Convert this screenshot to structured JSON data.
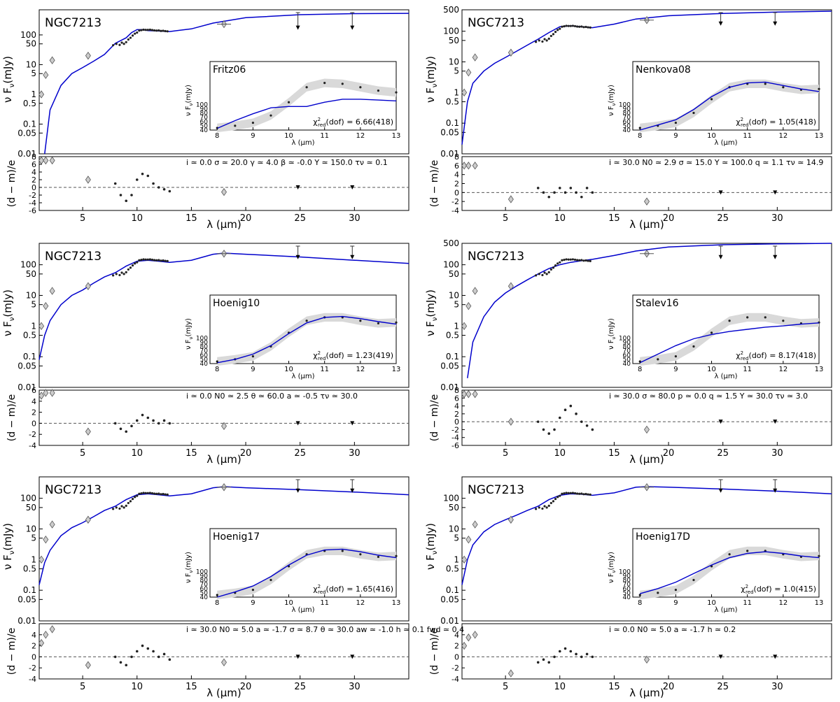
{
  "figure": {
    "object_name": "NGC7213",
    "y_label": "ν F",
    "y_label_sub": "ν",
    "y_label_unit": "(mJy)",
    "inset_y_label": "ν F",
    "inset_y_label_sub": "ν",
    "inset_y_label_unit": "(mJy)",
    "inset_x_label": "λ (μm)",
    "residual_label": "(d − m)/e",
    "x_label": "λ (μm)",
    "chi_prefix": "χ",
    "chi_sup": "2",
    "chi_sub": "red",
    "chi_dof": "(dof) = "
  },
  "chart_data": [
    {
      "type": "line",
      "panel": "top-left",
      "model": "Fritz06",
      "chi2_text": "6.66(418)",
      "params_text": "i ≃ 0.0      σ ≃ 20.0   γ ≃ 4.0     β ≃ -0.0   Y ≃ 150.0 τν ≃ 0.1",
      "xlim": [
        1,
        35
      ],
      "xticks": [
        5,
        10,
        15,
        20,
        25,
        30
      ],
      "ylim_log": [
        0.01,
        700
      ],
      "yticks": [
        "0.01",
        "0.05",
        "0.1",
        "0.5",
        "1",
        "5",
        "10",
        "50",
        "100"
      ],
      "ytick_values": [
        0.01,
        0.05,
        0.1,
        0.5,
        1,
        5,
        10,
        50,
        100
      ],
      "rylim": [
        -6,
        8
      ],
      "rticks": [
        -6,
        -4,
        -2,
        0,
        2,
        4,
        6,
        8
      ],
      "model_curve": {
        "x": [
          1.5,
          2,
          3,
          4,
          5,
          6,
          7,
          8,
          9,
          9.5,
          10,
          10.5,
          11,
          12,
          13,
          15,
          17,
          20,
          25,
          30,
          35
        ],
        "y": [
          0.01,
          0.3,
          2,
          5,
          8,
          13,
          22,
          52,
          80,
          120,
          150,
          150,
          140,
          135,
          130,
          160,
          250,
          380,
          480,
          520,
          530
        ]
      },
      "inset": {
        "xlim": [
          7.8,
          13
        ],
        "ylim": [
          40,
          200
        ],
        "curve_x": [
          8,
          8.5,
          9,
          9.5,
          10,
          10.5,
          11,
          11.5,
          12,
          12.5,
          13
        ],
        "curve_y": [
          44,
          62,
          78,
          92,
          95,
          95,
          105,
          112,
          112,
          110,
          108
        ],
        "data_y": [
          45,
          50,
          57,
          74,
          105,
          140,
          150,
          148,
          140,
          132,
          128
        ]
      },
      "residuals": {
        "x": [
          8,
          8.5,
          9,
          9.5,
          10,
          10.5,
          11,
          11.5,
          12,
          12.5,
          13
        ],
        "y": [
          1,
          -2,
          -3.5,
          -2,
          2,
          3.5,
          3,
          1,
          0,
          -0.5,
          -1
        ]
      }
    },
    {
      "type": "line",
      "panel": "top-right",
      "model": "Nenkova08",
      "chi2_text": "1.05(418)",
      "params_text": "i ≃ 30.0    N0 ≃ 2.9   σ ≃ 15.0   Y ≃ 100.0 q ≃ 1.1      τν ≃ 14.9",
      "xlim": [
        1,
        35
      ],
      "xticks": [
        5,
        10,
        15,
        20,
        25,
        30
      ],
      "ylim_log": [
        0.01,
        500
      ],
      "yticks": [
        "0.01",
        "0.05",
        "0.1",
        "0.5",
        "1",
        "5",
        "10",
        "50",
        "100",
        "500"
      ],
      "ytick_values": [
        0.01,
        0.05,
        0.1,
        0.5,
        1,
        5,
        10,
        50,
        100,
        500
      ],
      "rylim": [
        -4,
        8
      ],
      "rticks": [
        -4,
        -2,
        0,
        2,
        4,
        6,
        8
      ],
      "model_curve": {
        "x": [
          1,
          1.5,
          2,
          3,
          4,
          5,
          6,
          7,
          8,
          9,
          10,
          11,
          12,
          13,
          15,
          17,
          20,
          25,
          30,
          35
        ],
        "y": [
          0.02,
          0.5,
          2,
          5,
          9,
          14,
          22,
          35,
          55,
          90,
          140,
          150,
          140,
          130,
          170,
          250,
          320,
          380,
          420,
          450
        ]
      },
      "inset": {
        "xlim": [
          7.8,
          13
        ],
        "ylim": [
          40,
          200
        ],
        "curve_x": [
          8,
          8.5,
          9,
          9.5,
          10,
          10.5,
          11,
          11.5,
          12,
          12.5,
          13
        ],
        "curve_y": [
          40,
          52,
          64,
          88,
          118,
          140,
          150,
          152,
          144,
          136,
          130
        ],
        "data_y": [
          45,
          50,
          57,
          80,
          112,
          140,
          148,
          148,
          140,
          134,
          136
        ]
      },
      "residuals": {
        "x": [
          8,
          8.5,
          9,
          9.5,
          10,
          10.5,
          11,
          11.5,
          12,
          12.5,
          13
        ],
        "y": [
          1,
          0,
          -1,
          0,
          1,
          0,
          1,
          0,
          -1,
          1,
          0
        ]
      }
    },
    {
      "type": "line",
      "panel": "middle-left",
      "model": "Hoenig10",
      "chi2_text": "1.23(419)",
      "params_text": "i ≃ 0.0      N0 ≃ 2.5   θ ≃ 60.0   a ≃ -0.5    τν ≃ 30.0",
      "xlim": [
        1,
        35
      ],
      "xticks": [
        5,
        10,
        15,
        20,
        25,
        30
      ],
      "ylim_log": [
        0.01,
        500
      ],
      "yticks": [
        "0.01",
        "0.05",
        "0.1",
        "0.5",
        "1",
        "5",
        "10",
        "50",
        "100"
      ],
      "ytick_values": [
        0.01,
        0.05,
        0.1,
        0.5,
        1,
        5,
        10,
        50,
        100
      ],
      "rylim": [
        -4,
        6
      ],
      "rticks": [
        -4,
        -2,
        0,
        2,
        4,
        6
      ],
      "model_curve": {
        "x": [
          1,
          1.5,
          2,
          3,
          4,
          5,
          6,
          7,
          8,
          9,
          10,
          11,
          12,
          13,
          15,
          17,
          18,
          20,
          25,
          30,
          35
        ],
        "y": [
          0.08,
          0.5,
          1.5,
          5,
          10,
          15,
          25,
          40,
          55,
          90,
          130,
          140,
          130,
          120,
          140,
          220,
          240,
          220,
          180,
          140,
          110
        ]
      },
      "inset": {
        "xlim": [
          7.8,
          13
        ],
        "ylim": [
          40,
          200
        ],
        "curve_x": [
          8,
          8.5,
          9,
          9.5,
          10,
          10.5,
          11,
          11.5,
          12,
          12.5,
          13
        ],
        "curve_y": [
          42,
          50,
          62,
          82,
          110,
          135,
          148,
          150,
          145,
          138,
          132
        ],
        "data_y": [
          45,
          50,
          57,
          80,
          112,
          140,
          148,
          148,
          140,
          134,
          136
        ]
      },
      "residuals": {
        "x": [
          8,
          8.5,
          9,
          9.5,
          10,
          10.5,
          11,
          11.5,
          12,
          12.5,
          13
        ],
        "y": [
          0,
          -1,
          -1.5,
          -0.5,
          0.5,
          1.5,
          1,
          0.5,
          0,
          0.5,
          0
        ]
      }
    },
    {
      "type": "line",
      "panel": "middle-right",
      "model": "Stalev16",
      "chi2_text": "8.17(418)",
      "params_text": "i ≃ 30.0    σ ≃ 80.0   p ≃ 0.0      q ≃ 1.5      Y ≃ 30.0   τν ≃ 3.0",
      "xlim": [
        1,
        35
      ],
      "xticks": [
        5,
        10,
        15,
        20,
        25,
        30
      ],
      "ylim_log": [
        0.01,
        500
      ],
      "yticks": [
        "0.01",
        "0.05",
        "0.1",
        "0.5",
        "1",
        "5",
        "10",
        "50",
        "100",
        "500"
      ],
      "ytick_values": [
        0.01,
        0.05,
        0.1,
        0.5,
        1,
        5,
        10,
        50,
        100,
        500
      ],
      "rylim": [
        -6,
        8
      ],
      "rticks": [
        -6,
        -4,
        -2,
        0,
        2,
        4,
        6,
        8
      ],
      "model_curve": {
        "x": [
          1.5,
          2,
          3,
          4,
          5,
          6,
          7,
          8,
          9,
          10,
          11,
          12,
          13,
          15,
          17,
          20,
          25,
          30,
          35
        ],
        "y": [
          0.02,
          0.3,
          2,
          6,
          12,
          20,
          32,
          50,
          75,
          100,
          120,
          135,
          150,
          200,
          280,
          380,
          450,
          480,
          500
        ]
      },
      "inset": {
        "xlim": [
          7.8,
          13
        ],
        "ylim": [
          40,
          200
        ],
        "curve_x": [
          8,
          8.5,
          9,
          9.5,
          10,
          10.5,
          11,
          11.5,
          12,
          12.5,
          13
        ],
        "curve_y": [
          42,
          62,
          82,
          98,
          108,
          115,
          120,
          125,
          128,
          132,
          135
        ],
        "data_y": [
          45,
          50,
          57,
          80,
          112,
          140,
          148,
          148,
          140,
          134,
          136
        ]
      },
      "residuals": {
        "x": [
          8,
          8.5,
          9,
          9.5,
          10,
          10.5,
          11,
          11.5,
          12,
          12.5,
          13
        ],
        "y": [
          0,
          -2,
          -3,
          -2,
          1,
          3,
          4,
          2,
          0,
          -1,
          -2
        ]
      }
    },
    {
      "type": "line",
      "panel": "bottom-left",
      "model": "Hoenig17",
      "chi2_text": "1.65(416)",
      "params_text": "i ≃ 30.0    N0 ≃ 5.0   a ≃ -1.7    σ ≃ 8.7     θ ≃ 30.0   aw ≃ -1.0 h ≃ 0.1      fwd ≃ 0.4",
      "xlim": [
        1,
        35
      ],
      "xticks": [
        5,
        10,
        15,
        20,
        25,
        30
      ],
      "ylim_log": [
        0.01,
        500
      ],
      "yticks": [
        "0.01",
        "0.05",
        "0.1",
        "0.5",
        "1",
        "5",
        "10",
        "50",
        "100"
      ],
      "ytick_values": [
        0.01,
        0.05,
        0.1,
        0.5,
        1,
        5,
        10,
        50,
        100
      ],
      "rylim": [
        -4,
        6
      ],
      "rticks": [
        -4,
        -2,
        0,
        2,
        4
      ],
      "model_curve": {
        "x": [
          1,
          1.5,
          2,
          3,
          4,
          5,
          6,
          7,
          8,
          9,
          10,
          11,
          12,
          13,
          15,
          17,
          18,
          20,
          25,
          30,
          35
        ],
        "y": [
          0.15,
          0.8,
          2,
          6,
          11,
          16,
          25,
          40,
          55,
          90,
          130,
          140,
          130,
          120,
          140,
          220,
          240,
          220,
          190,
          160,
          130
        ]
      },
      "inset": {
        "xlim": [
          7.8,
          13
        ],
        "ylim": [
          40,
          200
        ],
        "curve_x": [
          8,
          8.5,
          9,
          9.5,
          10,
          10.5,
          11,
          11.5,
          12,
          12.5,
          13
        ],
        "curve_y": [
          40,
          52,
          66,
          88,
          115,
          138,
          150,
          152,
          146,
          138,
          132
        ],
        "data_y": [
          45,
          50,
          57,
          80,
          112,
          140,
          148,
          148,
          140,
          134,
          136
        ]
      },
      "residuals": {
        "x": [
          8,
          8.5,
          9,
          9.5,
          10,
          10.5,
          11,
          11.5,
          12,
          12.5,
          13
        ],
        "y": [
          0,
          -1,
          -1.5,
          0,
          1,
          2,
          1.5,
          1,
          0,
          0.5,
          -0.5
        ]
      }
    },
    {
      "type": "line",
      "panel": "bottom-right",
      "model": "Hoenig17D",
      "chi2_text": "1.0(415)",
      "params_text": "i ≃ 0.0      N0 ≃ 5.0   a ≃ -1.7    h ≃ 0.2",
      "xlim": [
        1,
        35
      ],
      "xticks": [
        5,
        10,
        15,
        20,
        25,
        30
      ],
      "ylim_log": [
        0.01,
        500
      ],
      "yticks": [
        "0.01",
        "0.05",
        "0.1",
        "0.5",
        "1",
        "5",
        "10",
        "50",
        "100"
      ],
      "ytick_values": [
        0.01,
        0.05,
        0.1,
        0.5,
        1,
        5,
        10,
        50,
        100
      ],
      "rylim": [
        -4,
        6
      ],
      "rticks": [
        -4,
        -2,
        0,
        2,
        4
      ],
      "model_curve": {
        "x": [
          1,
          1.5,
          2,
          3,
          4,
          5,
          6,
          7,
          8,
          9,
          10,
          11,
          12,
          13,
          15,
          17,
          18,
          20,
          25,
          30,
          35
        ],
        "y": [
          0.15,
          1,
          3,
          8,
          14,
          20,
          28,
          40,
          55,
          90,
          125,
          140,
          135,
          125,
          150,
          230,
          240,
          230,
          200,
          170,
          140
        ]
      },
      "inset": {
        "xlim": [
          7.8,
          13
        ],
        "ylim": [
          40,
          200
        ],
        "curve_x": [
          8,
          8.5,
          9,
          9.5,
          10,
          10.5,
          11,
          11.5,
          12,
          12.5,
          13
        ],
        "curve_y": [
          48,
          60,
          75,
          95,
          115,
          132,
          142,
          146,
          142,
          136,
          132
        ],
        "data_y": [
          45,
          50,
          57,
          80,
          112,
          140,
          148,
          148,
          140,
          134,
          136
        ]
      },
      "residuals": {
        "x": [
          8,
          8.5,
          9,
          9.5,
          10,
          10.5,
          11,
          11.5,
          12,
          12.5,
          13
        ],
        "y": [
          -1,
          -0.5,
          -1,
          0,
          1,
          1.5,
          1,
          0.5,
          0,
          0.5,
          0
        ]
      }
    }
  ],
  "photometry": {
    "x": [
      1.2,
      1.6,
      2.2,
      5.5,
      18.0
    ],
    "y": [
      1,
      4.5,
      14,
      20,
      230
    ],
    "upper_limits_x": [
      24.8,
      29.8
    ],
    "upper_limits_y": [
      300,
      300
    ],
    "resid_left": [
      [
        7,
        7,
        7,
        2,
        -1.2
      ],
      [
        6,
        6,
        6,
        -1.5,
        -2
      ],
      [
        5,
        5.5,
        5.5,
        -1.5,
        -0.5
      ],
      [
        7,
        7,
        7,
        0,
        -2
      ],
      [
        2.5,
        4,
        5,
        -1.5,
        -1
      ],
      [
        2,
        3.5,
        4,
        -3,
        -0.5
      ]
    ]
  },
  "spectrum": {
    "x": [
      7.8,
      8.1,
      8.4,
      8.6,
      8.8,
      9.0,
      9.2,
      9.4,
      9.6,
      9.8,
      10.0,
      10.2,
      10.4,
      10.6,
      10.8,
      11.0,
      11.2,
      11.4,
      11.6,
      11.8,
      12.0,
      12.2,
      12.4,
      12.6,
      12.8
    ],
    "y": [
      45,
      50,
      46,
      55,
      50,
      57,
      70,
      80,
      95,
      110,
      120,
      140,
      145,
      150,
      148,
      148,
      150,
      146,
      142,
      140,
      142,
      136,
      138,
      134,
      132
    ]
  }
}
